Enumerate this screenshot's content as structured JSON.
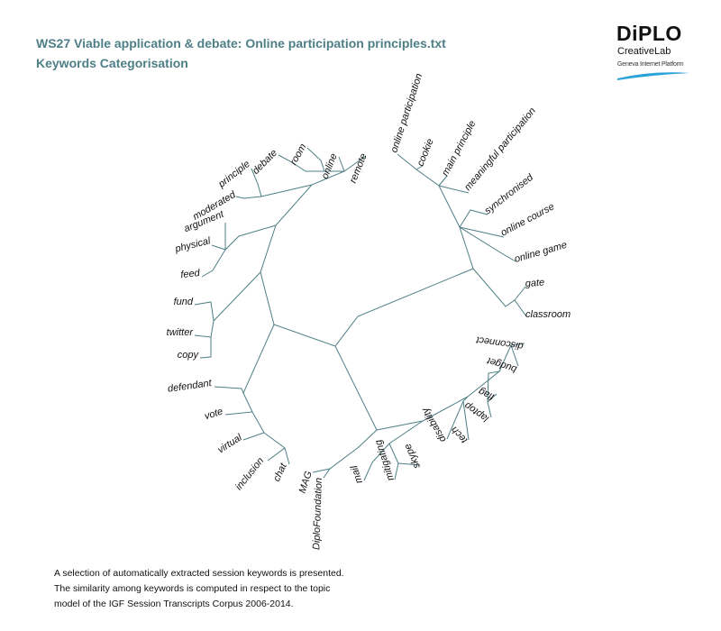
{
  "header": {
    "title": "WS27 Viable application & debate: Online participation principles.txt",
    "subtitle": "Keywords Categorisation"
  },
  "logo": {
    "wordmark": "DiPLO",
    "line1": "CreativeLab",
    "line2": "Geneva Internet Platform"
  },
  "diagram": {
    "type": "dendrogram",
    "edge_color": "#4e7f86",
    "keywords": [
      "remote",
      "online",
      "room",
      "debate",
      "principle",
      "moderated",
      "argument",
      "physical",
      "feed",
      "fund",
      "twitter",
      "copy",
      "defendant",
      "vote",
      "virtual",
      "inclusion",
      "chat",
      "MAG",
      "DiploFoundation",
      "mail",
      "mitigating",
      "skype",
      "disability",
      "tech",
      "laptop",
      "flag",
      "budget",
      "disconnect",
      "classroom",
      "gate",
      "online game",
      "online course",
      "synchronised",
      "meaningful participation",
      "main principle",
      "cookie",
      "online participation"
    ]
  },
  "footer": {
    "lines": [
      "A selection of automatically extracted session keywords is presented.",
      "The similarity among keywords is computed in respect to the topic",
      "model of the IGF Session Transcripts Corpus 2006-2014."
    ]
  }
}
